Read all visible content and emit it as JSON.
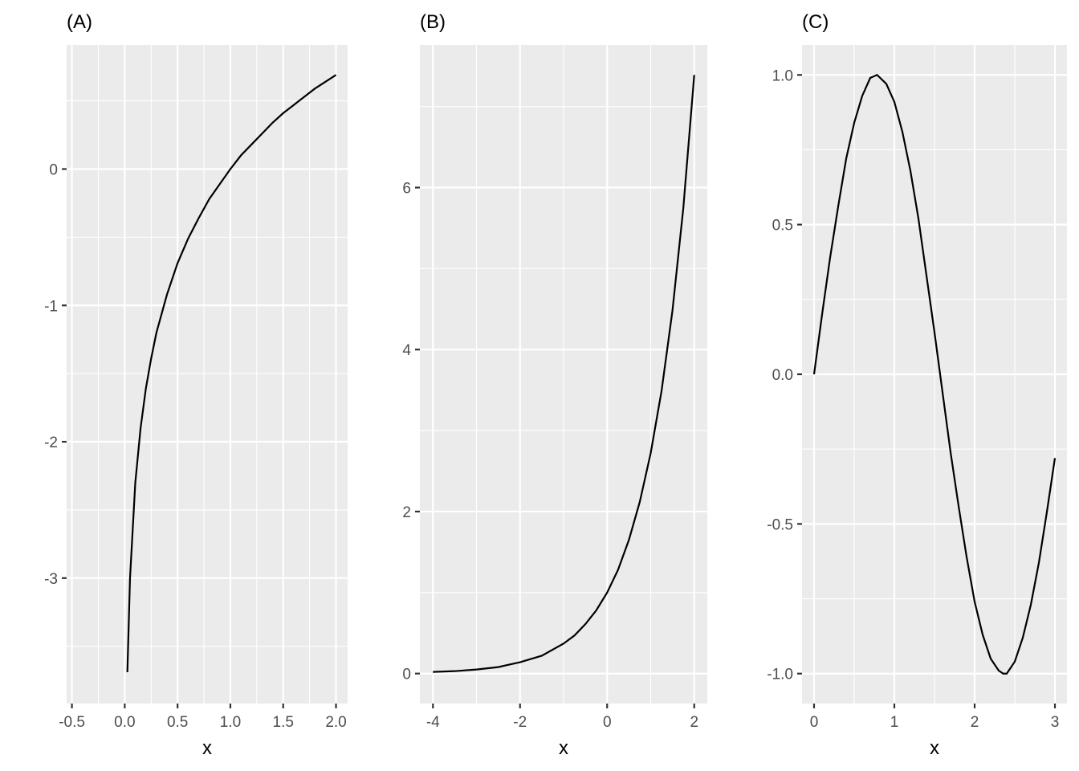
{
  "chart_data": [
    {
      "type": "line",
      "title": "(A)",
      "xlabel": "x",
      "ylabel": "",
      "xlim": [
        -0.55,
        2.11
      ],
      "ylim": [
        -3.92,
        0.91
      ],
      "x_ticks": [
        -0.5,
        0.0,
        0.5,
        1.0,
        1.5,
        2.0
      ],
      "x_tick_labels": [
        "-0.5",
        "0.0",
        "0.5",
        "1.0",
        "1.5",
        "2.0"
      ],
      "y_ticks": [
        -3,
        -2,
        -1,
        0
      ],
      "y_tick_labels": [
        "-3",
        "-2",
        "-1",
        "0"
      ],
      "grid": true,
      "series": [
        {
          "x": [
            0.025,
            0.05,
            0.1,
            0.15,
            0.2,
            0.25,
            0.3,
            0.4,
            0.5,
            0.6,
            0.7,
            0.8,
            0.9,
            1.0,
            1.1,
            1.2,
            1.3,
            1.4,
            1.5,
            1.6,
            1.7,
            1.8,
            1.9,
            2.0
          ],
          "y": [
            -3.69,
            -3.0,
            -2.3,
            -1.9,
            -1.61,
            -1.39,
            -1.2,
            -0.92,
            -0.69,
            -0.51,
            -0.36,
            -0.22,
            -0.11,
            0.0,
            0.1,
            0.18,
            0.26,
            0.34,
            0.41,
            0.47,
            0.53,
            0.59,
            0.64,
            0.69
          ]
        }
      ]
    },
    {
      "type": "line",
      "title": "(B)",
      "xlabel": "x",
      "ylabel": "",
      "xlim": [
        -4.3,
        2.3
      ],
      "ylim": [
        -0.37,
        7.76
      ],
      "x_ticks": [
        -4,
        -2,
        0,
        2
      ],
      "x_tick_labels": [
        "-4",
        "-2",
        "0",
        "2"
      ],
      "y_ticks": [
        0,
        2,
        4,
        6
      ],
      "y_tick_labels": [
        "0",
        "2",
        "4",
        "6"
      ],
      "grid": true,
      "series": [
        {
          "x": [
            -4.0,
            -3.5,
            -3.0,
            -2.5,
            -2.0,
            -1.5,
            -1.0,
            -0.75,
            -0.5,
            -0.25,
            0.0,
            0.25,
            0.5,
            0.75,
            1.0,
            1.25,
            1.5,
            1.75,
            2.0
          ],
          "y": [
            0.02,
            0.03,
            0.05,
            0.08,
            0.14,
            0.22,
            0.37,
            0.47,
            0.61,
            0.78,
            1.0,
            1.28,
            1.65,
            2.12,
            2.72,
            3.49,
            4.48,
            5.75,
            7.39
          ]
        }
      ]
    },
    {
      "type": "line",
      "title": "(C)",
      "xlabel": "x",
      "ylabel": "",
      "xlim": [
        -0.15,
        3.15
      ],
      "ylim": [
        -1.1,
        1.1
      ],
      "x_ticks": [
        0,
        1,
        2,
        3
      ],
      "x_tick_labels": [
        "0",
        "1",
        "2",
        "3"
      ],
      "y_ticks": [
        -1.0,
        -0.5,
        0.0,
        0.5,
        1.0
      ],
      "y_tick_labels": [
        "-1.0",
        "-0.5",
        "0.0",
        "0.5",
        "1.0"
      ],
      "grid": true,
      "series": [
        {
          "x": [
            0.0,
            0.1,
            0.2,
            0.3,
            0.4,
            0.5,
            0.6,
            0.7,
            0.785,
            0.9,
            1.0,
            1.1,
            1.2,
            1.3,
            1.4,
            1.5,
            1.6,
            1.7,
            1.8,
            1.9,
            2.0,
            2.1,
            2.2,
            2.3,
            2.356,
            2.4,
            2.5,
            2.6,
            2.7,
            2.8,
            2.9,
            3.0
          ],
          "y": [
            0.0,
            0.2,
            0.39,
            0.56,
            0.72,
            0.84,
            0.93,
            0.99,
            1.0,
            0.97,
            0.91,
            0.81,
            0.68,
            0.52,
            0.33,
            0.14,
            -0.06,
            -0.26,
            -0.44,
            -0.61,
            -0.76,
            -0.87,
            -0.95,
            -0.99,
            -1.0,
            -1.0,
            -0.96,
            -0.88,
            -0.77,
            -0.63,
            -0.46,
            -0.28
          ]
        }
      ]
    }
  ]
}
